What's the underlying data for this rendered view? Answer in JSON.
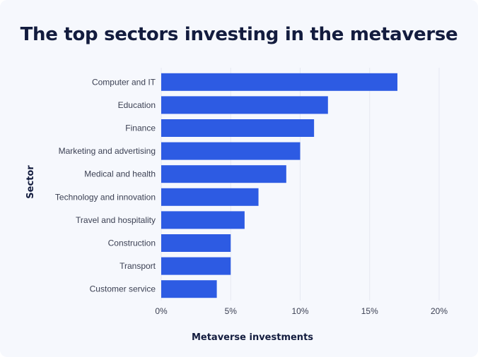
{
  "chart_data": {
    "type": "bar",
    "orientation": "horizontal",
    "title": "The top sectors investing in the metaverse",
    "xlabel": "Metaverse investments",
    "ylabel": "Sector",
    "categories": [
      "Computer and IT",
      "Education",
      "Finance",
      "Marketing and advertising",
      "Medical and health",
      "Technology and innovation",
      "Travel and hospitality",
      "Construction",
      "Transport",
      "Customer service"
    ],
    "values": [
      17,
      12,
      11,
      10,
      9,
      7,
      6,
      5,
      5,
      4
    ],
    "xlim": [
      0,
      20
    ],
    "xticks": [
      0,
      5,
      10,
      15,
      20
    ],
    "xtick_labels": [
      "0%",
      "5%",
      "10%",
      "15%",
      "20%"
    ],
    "grid": true,
    "bar_color": "#2d5be3"
  }
}
